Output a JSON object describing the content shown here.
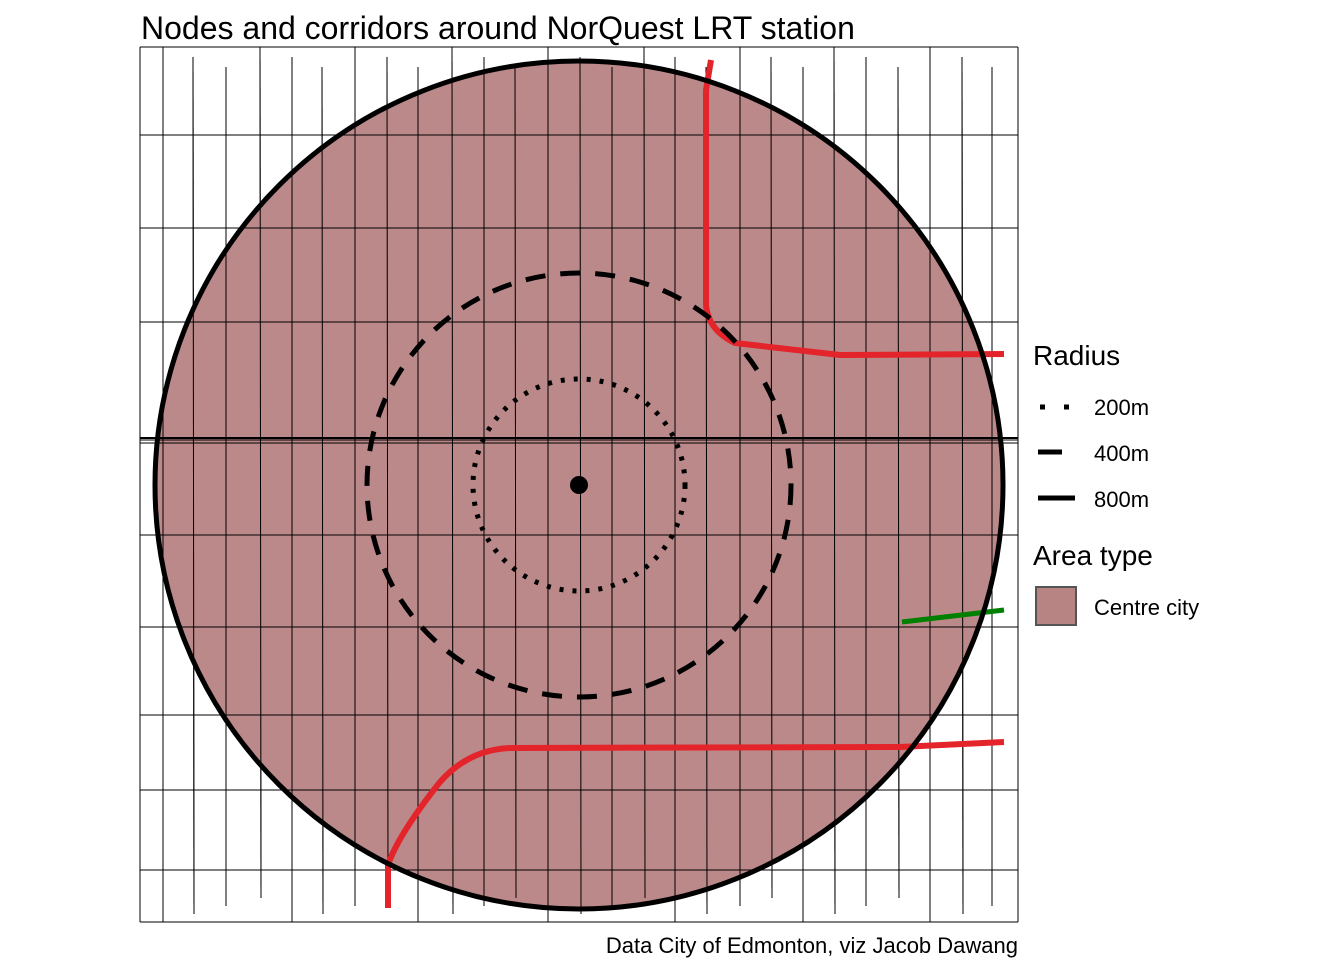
{
  "title": "Nodes and corridors around NorQuest LRT station",
  "caption": "Data City of Edmonton, viz Jacob Dawang",
  "legend": {
    "radius": {
      "title": "Radius",
      "items": [
        {
          "label": "200m",
          "linetype": "dotted"
        },
        {
          "label": "400m",
          "linetype": "dashed"
        },
        {
          "label": "800m",
          "linetype": "solid"
        }
      ]
    },
    "area_type": {
      "title": "Area type",
      "items": [
        {
          "label": "Centre city",
          "color": "#B78383"
        }
      ]
    }
  },
  "colors": {
    "area_fill": "#B78383",
    "corridor": "#E3242B",
    "node_corridor": "#008000",
    "streets": "#000000",
    "radius_lines": "#000000"
  }
}
